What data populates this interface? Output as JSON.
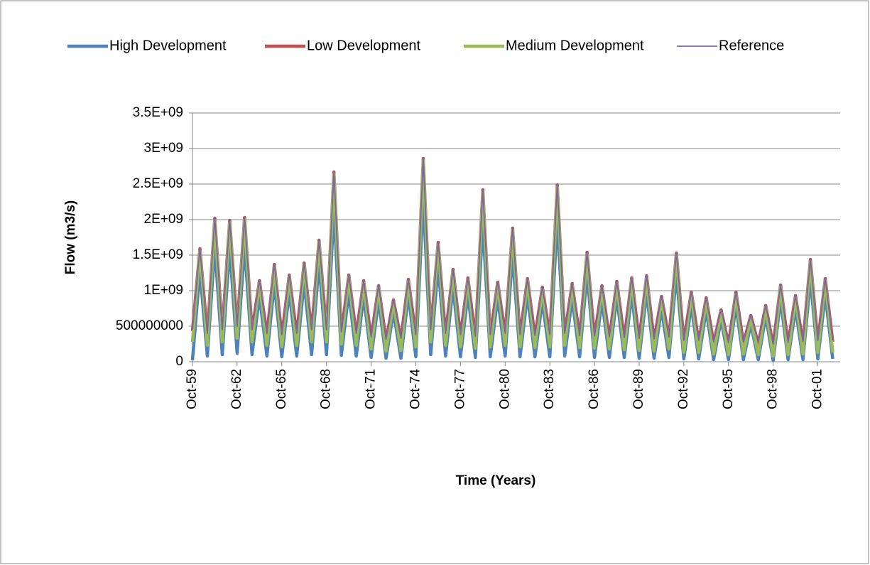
{
  "chart_data": {
    "type": "line",
    "x_label": "Time (Years)",
    "y_label": "Flow (m3/s)",
    "categories": [
      "Oct-59",
      null,
      null,
      null,
      null,
      null,
      "Oct-62",
      null,
      null,
      null,
      null,
      null,
      "Oct-65",
      null,
      null,
      null,
      null,
      null,
      "Oct-68",
      null,
      null,
      null,
      null,
      null,
      "Oct-71",
      null,
      null,
      null,
      null,
      null,
      "Oct-74",
      null,
      null,
      null,
      null,
      null,
      "Oct-77",
      null,
      null,
      null,
      null,
      null,
      "Oct-80",
      null,
      null,
      null,
      null,
      null,
      "Oct-83",
      null,
      null,
      null,
      null,
      null,
      "Oct-86",
      null,
      null,
      null,
      null,
      null,
      "Oct-89",
      null,
      null,
      null,
      null,
      null,
      "Oct-92",
      null,
      null,
      null,
      null,
      null,
      "Oct-95",
      null,
      null,
      null,
      null,
      null,
      "Oct-98",
      null,
      null,
      null,
      null,
      null,
      "Oct-01",
      null,
      null
    ],
    "ylim": [
      0,
      3500000000.0
    ],
    "yticks": [
      0,
      500000000,
      {
        "value": 1000000000.0,
        "label": "1E+09"
      },
      {
        "value": 1500000000.0,
        "label": "1.5E+09"
      },
      {
        "value": 2000000000.0,
        "label": "2E+09"
      },
      {
        "value": 2500000000.0,
        "label": "2.5E+09"
      },
      {
        "value": 3000000000.0,
        "label": "3E+09"
      },
      {
        "value": 3500000000.0,
        "label": "3.5E+09"
      }
    ],
    "grid": true,
    "legend": "top",
    "series": [
      {
        "name": "High Development",
        "color": "#4f81bd",
        "values": [
          20000000.0,
          1280000000.0,
          80000000.0,
          1620000000.0,
          100000000.0,
          1600000000.0,
          120000000.0,
          1630000000.0,
          100000000.0,
          920000000.0,
          80000000.0,
          1100000000.0,
          70000000.0,
          980000000.0,
          80000000.0,
          1120000000.0,
          100000000.0,
          1380000000.0,
          100000000.0,
          2140000000.0,
          90000000.0,
          980000000.0,
          80000000.0,
          920000000.0,
          60000000.0,
          860000000.0,
          50000000.0,
          700000000.0,
          50000000.0,
          940000000.0,
          70000000.0,
          2300000000.0,
          100000000.0,
          1350000000.0,
          80000000.0,
          1050000000.0,
          70000000.0,
          950000000.0,
          60000000.0,
          1940000000.0,
          70000000.0,
          900000000.0,
          80000000.0,
          1510000000.0,
          70000000.0,
          940000000.0,
          70000000.0,
          850000000.0,
          70000000.0,
          2000000000.0,
          80000000.0,
          890000000.0,
          70000000.0,
          1240000000.0,
          60000000.0,
          860000000.0,
          60000000.0,
          910000000.0,
          60000000.0,
          950000000.0,
          50000000.0,
          980000000.0,
          50000000.0,
          740000000.0,
          60000000.0,
          1230000000.0,
          40000000.0,
          790000000.0,
          40000000.0,
          730000000.0,
          30000000.0,
          590000000.0,
          30000000.0,
          790000000.0,
          30000000.0,
          530000000.0,
          30000000.0,
          640000000.0,
          20000000.0,
          870000000.0,
          30000000.0,
          750000000.0,
          30000000.0,
          1160000000.0,
          40000000.0,
          940000000.0,
          40000000.0
        ]
      },
      {
        "name": "Low Development",
        "color": "#c0504d",
        "values": [
          430000000.0,
          1590000000.0,
          380000000.0,
          2020000000.0,
          430000000.0,
          1990000000.0,
          480000000.0,
          2030000000.0,
          430000000.0,
          1140000000.0,
          380000000.0,
          1370000000.0,
          360000000.0,
          1220000000.0,
          380000000.0,
          1390000000.0,
          430000000.0,
          1710000000.0,
          430000000.0,
          2670000000.0,
          400000000.0,
          1220000000.0,
          380000000.0,
          1140000000.0,
          330000000.0,
          1070000000.0,
          300000000.0,
          870000000.0,
          310000000.0,
          1160000000.0,
          360000000.0,
          2860000000.0,
          430000000.0,
          1680000000.0,
          380000000.0,
          1300000000.0,
          360000000.0,
          1180000000.0,
          340000000.0,
          2420000000.0,
          360000000.0,
          1120000000.0,
          380000000.0,
          1880000000.0,
          360000000.0,
          1170000000.0,
          350000000.0,
          1050000000.0,
          360000000.0,
          2490000000.0,
          380000000.0,
          1100000000.0,
          350000000.0,
          1540000000.0,
          340000000.0,
          1070000000.0,
          330000000.0,
          1130000000.0,
          320000000.0,
          1180000000.0,
          310000000.0,
          1210000000.0,
          300000000.0,
          920000000.0,
          330000000.0,
          1530000000.0,
          280000000.0,
          980000000.0,
          280000000.0,
          900000000.0,
          260000000.0,
          730000000.0,
          250000000.0,
          980000000.0,
          260000000.0,
          650000000.0,
          250000000.0,
          790000000.0,
          230000000.0,
          1080000000.0,
          250000000.0,
          930000000.0,
          260000000.0,
          1440000000.0,
          280000000.0,
          1170000000.0,
          280000000.0
        ]
      },
      {
        "name": "Medium Development",
        "color": "#9bbb59",
        "values": [
          280000000.0,
          1560000000.0,
          230000000.0,
          1990000000.0,
          280000000.0,
          1960000000.0,
          330000000.0,
          2000000000.0,
          280000000.0,
          1110000000.0,
          230000000.0,
          1340000000.0,
          210000000.0,
          1190000000.0,
          230000000.0,
          1360000000.0,
          280000000.0,
          1680000000.0,
          280000000.0,
          2640000000.0,
          250000000.0,
          1190000000.0,
          230000000.0,
          1110000000.0,
          180000000.0,
          1040000000.0,
          150000000.0,
          840000000.0,
          160000000.0,
          1130000000.0,
          210000000.0,
          2830000000.0,
          280000000.0,
          1650000000.0,
          230000000.0,
          1270000000.0,
          210000000.0,
          1150000000.0,
          190000000.0,
          2390000000.0,
          210000000.0,
          1090000000.0,
          230000000.0,
          1850000000.0,
          210000000.0,
          1140000000.0,
          200000000.0,
          1020000000.0,
          210000000.0,
          2460000000.0,
          230000000.0,
          1070000000.0,
          200000000.0,
          1510000000.0,
          190000000.0,
          1040000000.0,
          180000000.0,
          1100000000.0,
          170000000.0,
          1150000000.0,
          160000000.0,
          1180000000.0,
          150000000.0,
          890000000.0,
          180000000.0,
          1500000000.0,
          130000000.0,
          950000000.0,
          130000000.0,
          870000000.0,
          110000000.0,
          700000000.0,
          100000000.0,
          950000000.0,
          110000000.0,
          620000000.0,
          100000000.0,
          760000000.0,
          80000000.0,
          1050000000.0,
          100000000.0,
          900000000.0,
          110000000.0,
          1410000000.0,
          130000000.0,
          1140000000.0,
          130000000.0
        ]
      },
      {
        "name": "Reference",
        "color": "#8064a2",
        "values": [
          450000000.0,
          1600000000.0,
          400000000.0,
          2030000000.0,
          450000000.0,
          2000000000.0,
          500000000.0,
          2040000000.0,
          450000000.0,
          1150000000.0,
          400000000.0,
          1380000000.0,
          380000000.0,
          1230000000.0,
          400000000.0,
          1400000000.0,
          450000000.0,
          1720000000.0,
          450000000.0,
          2680000000.0,
          420000000.0,
          1230000000.0,
          400000000.0,
          1150000000.0,
          350000000.0,
          1080000000.0,
          320000000.0,
          880000000.0,
          330000000.0,
          1170000000.0,
          380000000.0,
          2870000000.0,
          450000000.0,
          1690000000.0,
          400000000.0,
          1310000000.0,
          380000000.0,
          1190000000.0,
          360000000.0,
          2430000000.0,
          380000000.0,
          1130000000.0,
          400000000.0,
          1890000000.0,
          380000000.0,
          1180000000.0,
          370000000.0,
          1060000000.0,
          380000000.0,
          2500000000.0,
          400000000.0,
          1110000000.0,
          370000000.0,
          1550000000.0,
          360000000.0,
          1080000000.0,
          350000000.0,
          1140000000.0,
          340000000.0,
          1190000000.0,
          330000000.0,
          1220000000.0,
          320000000.0,
          930000000.0,
          350000000.0,
          1540000000.0,
          300000000.0,
          990000000.0,
          300000000.0,
          910000000.0,
          280000000.0,
          740000000.0,
          270000000.0,
          990000000.0,
          280000000.0,
          660000000.0,
          270000000.0,
          800000000.0,
          250000000.0,
          1090000000.0,
          270000000.0,
          940000000.0,
          280000000.0,
          1450000000.0,
          300000000.0,
          1180000000.0,
          300000000.0
        ]
      }
    ]
  }
}
